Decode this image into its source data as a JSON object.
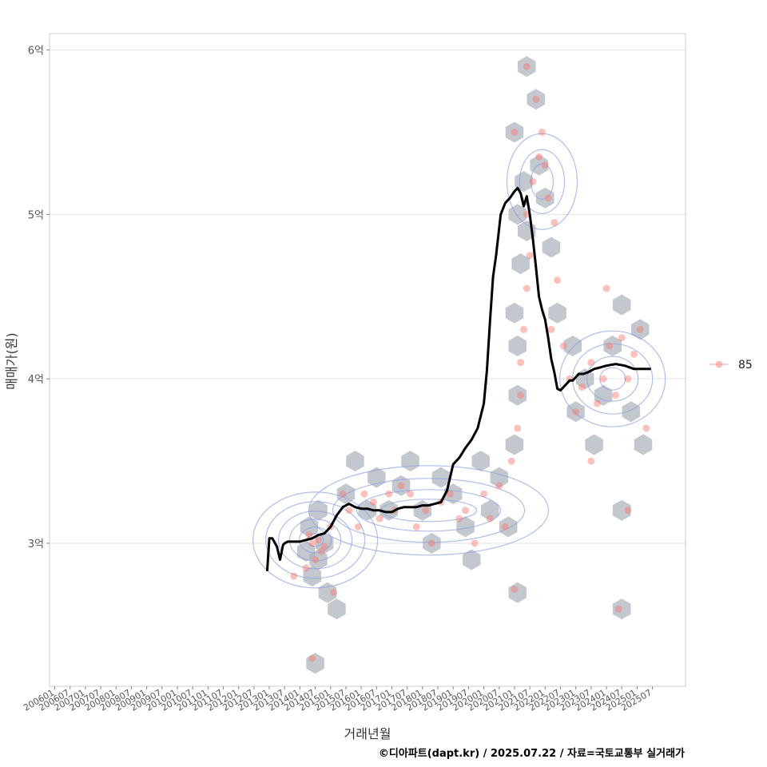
{
  "chart_data": {
    "type": "scatter",
    "title": "",
    "xlabel": "거래년월",
    "ylabel": "매매가(원)",
    "caption": "©디아파트(dapt.kr) / 2025.07.22 / 자료=국토교통부 실거래가",
    "legend": {
      "placement": "right",
      "entries": [
        "85"
      ]
    },
    "x_ticks": [
      "200601",
      "200607",
      "200701",
      "200707",
      "200801",
      "200807",
      "200901",
      "200907",
      "201001",
      "201007",
      "201101",
      "201107",
      "201201",
      "201207",
      "201301",
      "201307",
      "201401",
      "201407",
      "201501",
      "201507",
      "201601",
      "201607",
      "201701",
      "201707",
      "201801",
      "201807",
      "201901",
      "201907",
      "202001",
      "202007",
      "202101",
      "202107",
      "202201",
      "202207",
      "202301",
      "202307",
      "202401",
      "202407",
      "202501",
      "202507"
    ],
    "y_ticks": [
      {
        "value": 3.0,
        "label": "3억"
      },
      {
        "value": 4.0,
        "label": "4억"
      },
      {
        "value": 5.0,
        "label": "5억"
      },
      {
        "value": 6.0,
        "label": "6억"
      }
    ],
    "xlim": [
      2005.83,
      2026.58
    ],
    "ylim": [
      2.13,
      6.1
    ],
    "grid": true,
    "colors": {
      "points": "#f8766d",
      "line": "#000000",
      "hex": "#a9b1bb",
      "contour": "#8ea3e0"
    },
    "hexbins": [
      [
        2014.5,
        2.27
      ],
      [
        2014.4,
        2.8
      ],
      [
        2014.6,
        2.9
      ],
      [
        2014.2,
        2.95
      ],
      [
        2014.8,
        3.0
      ],
      [
        2014.3,
        3.1
      ],
      [
        2014.6,
        3.2
      ],
      [
        2014.9,
        2.7
      ],
      [
        2015.2,
        2.6
      ],
      [
        2015.5,
        3.3
      ],
      [
        2015.8,
        3.5
      ],
      [
        2016.2,
        3.2
      ],
      [
        2016.5,
        3.4
      ],
      [
        2016.9,
        3.2
      ],
      [
        2017.3,
        3.35
      ],
      [
        2017.6,
        3.5
      ],
      [
        2018.0,
        3.2
      ],
      [
        2018.3,
        3.0
      ],
      [
        2018.6,
        3.4
      ],
      [
        2019.0,
        3.3
      ],
      [
        2019.4,
        3.1
      ],
      [
        2019.6,
        2.9
      ],
      [
        2019.9,
        3.5
      ],
      [
        2020.2,
        3.2
      ],
      [
        2020.5,
        3.4
      ],
      [
        2020.8,
        3.1
      ],
      [
        2021.0,
        3.6
      ],
      [
        2021.1,
        2.7
      ],
      [
        2021.1,
        3.9
      ],
      [
        2021.1,
        4.2
      ],
      [
        2021.0,
        4.4
      ],
      [
        2021.2,
        4.7
      ],
      [
        2021.1,
        5.0
      ],
      [
        2021.3,
        5.2
      ],
      [
        2021.0,
        5.5
      ],
      [
        2021.4,
        4.9
      ],
      [
        2021.4,
        5.9
      ],
      [
        2021.7,
        5.7
      ],
      [
        2021.8,
        5.3
      ],
      [
        2022.0,
        5.1
      ],
      [
        2022.2,
        4.8
      ],
      [
        2022.4,
        4.4
      ],
      [
        2022.9,
        4.2
      ],
      [
        2023.0,
        3.8
      ],
      [
        2023.3,
        4.0
      ],
      [
        2023.6,
        3.6
      ],
      [
        2023.9,
        3.9
      ],
      [
        2024.2,
        4.2
      ],
      [
        2024.5,
        4.45
      ],
      [
        2024.5,
        3.2
      ],
      [
        2024.5,
        2.6
      ],
      [
        2024.8,
        3.8
      ],
      [
        2025.1,
        4.3
      ],
      [
        2025.2,
        3.6
      ]
    ],
    "scatter_points": [
      [
        2014.4,
        2.3
      ],
      [
        2013.8,
        2.8
      ],
      [
        2014.2,
        2.85
      ],
      [
        2014.5,
        2.9
      ],
      [
        2014.7,
        2.95
      ],
      [
        2014.4,
        3.0
      ],
      [
        2014.6,
        3.02
      ],
      [
        2014.3,
        3.05
      ],
      [
        2014.8,
        2.98
      ],
      [
        2015.1,
        2.7
      ],
      [
        2015.0,
        3.1
      ],
      [
        2015.4,
        3.3
      ],
      [
        2015.6,
        3.2
      ],
      [
        2015.9,
        3.1
      ],
      [
        2016.1,
        3.3
      ],
      [
        2016.4,
        3.25
      ],
      [
        2016.6,
        3.15
      ],
      [
        2016.9,
        3.3
      ],
      [
        2017.1,
        3.2
      ],
      [
        2017.3,
        3.35
      ],
      [
        2017.6,
        3.3
      ],
      [
        2017.8,
        3.1
      ],
      [
        2018.1,
        3.2
      ],
      [
        2018.3,
        3.0
      ],
      [
        2018.6,
        3.25
      ],
      [
        2018.9,
        3.3
      ],
      [
        2019.2,
        3.15
      ],
      [
        2019.4,
        3.2
      ],
      [
        2019.7,
        3.0
      ],
      [
        2020.0,
        3.3
      ],
      [
        2020.2,
        3.15
      ],
      [
        2020.5,
        3.35
      ],
      [
        2020.7,
        3.1
      ],
      [
        2020.9,
        3.5
      ],
      [
        2021.0,
        2.72
      ],
      [
        2021.1,
        3.7
      ],
      [
        2021.2,
        3.9
      ],
      [
        2021.2,
        4.1
      ],
      [
        2021.3,
        4.3
      ],
      [
        2021.4,
        4.55
      ],
      [
        2021.5,
        4.75
      ],
      [
        2021.4,
        5.0
      ],
      [
        2021.6,
        5.2
      ],
      [
        2021.8,
        5.35
      ],
      [
        2021.9,
        5.5
      ],
      [
        2022.0,
        5.3
      ],
      [
        2022.1,
        5.1
      ],
      [
        2022.3,
        4.95
      ],
      [
        2022.4,
        4.6
      ],
      [
        2021.4,
        5.9
      ],
      [
        2021.7,
        5.7
      ],
      [
        2021.0,
        5.5
      ],
      [
        2022.2,
        4.3
      ],
      [
        2022.6,
        4.2
      ],
      [
        2022.8,
        4.0
      ],
      [
        2023.0,
        3.8
      ],
      [
        2023.2,
        3.95
      ],
      [
        2023.5,
        4.1
      ],
      [
        2023.7,
        3.85
      ],
      [
        2023.9,
        4.0
      ],
      [
        2024.1,
        4.2
      ],
      [
        2024.3,
        3.9
      ],
      [
        2024.5,
        4.25
      ],
      [
        2024.7,
        4.0
      ],
      [
        2024.9,
        4.15
      ],
      [
        2025.1,
        4.3
      ],
      [
        2025.3,
        3.7
      ],
      [
        2024.0,
        4.55
      ],
      [
        2024.4,
        2.6
      ],
      [
        2024.7,
        3.2
      ],
      [
        2023.5,
        3.5
      ]
    ],
    "contours": [
      [
        [
          2013.0,
          3.0
        ],
        [
          2014.4,
          3.02
        ],
        [
          2015.5,
          3.15
        ]
      ],
      [
        [
          2015.5,
          3.2
        ],
        [
          2018.0,
          3.2
        ],
        [
          2020.5,
          3.25
        ]
      ]
    ],
    "trend_line": {
      "name": "",
      "x": [
        2012.93,
        2013.0,
        2013.1,
        2013.25,
        2013.35,
        2013.45,
        2013.5,
        2013.6,
        2013.8,
        2014.0,
        2014.2,
        2014.4,
        2014.6,
        2014.8,
        2015.0,
        2015.2,
        2015.4,
        2015.6,
        2015.8,
        2016.0,
        2016.2,
        2016.4,
        2016.6,
        2016.8,
        2017.0,
        2017.2,
        2017.4,
        2017.6,
        2017.8,
        2018.0,
        2018.2,
        2018.4,
        2018.6,
        2018.8,
        2019.0,
        2019.2,
        2019.4,
        2019.6,
        2019.8,
        2020.0,
        2020.1,
        2020.2,
        2020.3,
        2020.4,
        2020.55,
        2020.7,
        2020.85,
        2021.0,
        2021.1,
        2021.2,
        2021.3,
        2021.4,
        2021.5,
        2021.6,
        2021.7,
        2021.8,
        2021.9,
        2022.0,
        2022.1,
        2022.2,
        2022.3,
        2022.4,
        2022.5,
        2022.6,
        2022.7,
        2022.8,
        2022.9,
        2023.0,
        2023.1,
        2023.25,
        2023.4,
        2023.6,
        2023.8,
        2024.0,
        2024.3,
        2024.6,
        2024.9,
        2025.2,
        2025.45
      ],
      "y": [
        2.83,
        3.03,
        3.03,
        2.98,
        2.9,
        2.99,
        3.0,
        3.01,
        3.01,
        3.01,
        3.02,
        3.03,
        3.05,
        3.06,
        3.1,
        3.17,
        3.22,
        3.24,
        3.22,
        3.21,
        3.21,
        3.2,
        3.2,
        3.19,
        3.19,
        3.21,
        3.22,
        3.22,
        3.22,
        3.23,
        3.23,
        3.24,
        3.25,
        3.32,
        3.48,
        3.52,
        3.58,
        3.63,
        3.7,
        3.85,
        4.05,
        4.35,
        4.62,
        4.75,
        5.0,
        5.07,
        5.1,
        5.14,
        5.16,
        5.13,
        5.05,
        5.11,
        5.0,
        4.85,
        4.68,
        4.5,
        4.42,
        4.36,
        4.25,
        4.12,
        4.04,
        3.94,
        3.93,
        3.95,
        3.97,
        3.99,
        3.99,
        4.01,
        4.03,
        4.03,
        4.04,
        4.06,
        4.07,
        4.08,
        4.09,
        4.08,
        4.06,
        4.06,
        4.06
      ]
    }
  }
}
